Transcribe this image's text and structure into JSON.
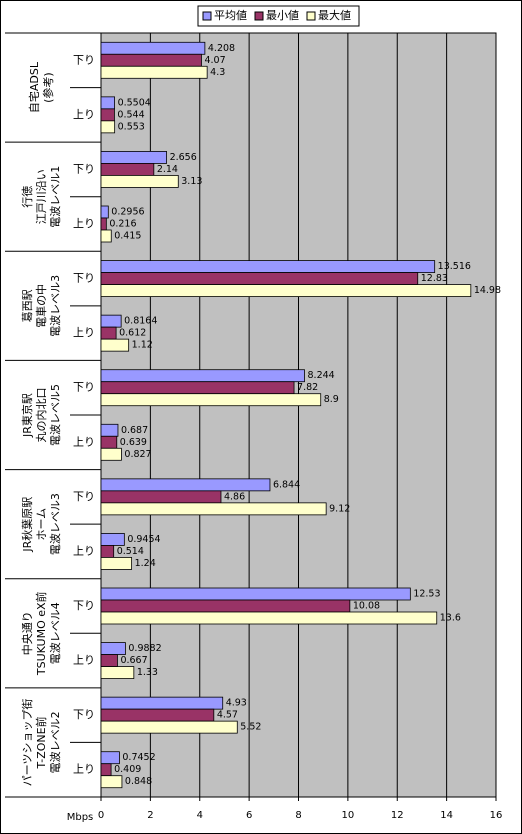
{
  "chart_data": {
    "type": "bar",
    "orientation": "horizontal",
    "groups": [
      {
        "lines": [
          "自宅ADSL",
          "(参考)"
        ],
        "subs": [
          "下り",
          "上り"
        ]
      },
      {
        "lines": [
          "行徳",
          "江戸川沿い",
          "電波レベル1"
        ],
        "subs": [
          "下り",
          "上り"
        ]
      },
      {
        "lines": [
          "葛西駅",
          "電車の中",
          "電波レベル3"
        ],
        "subs": [
          "下り",
          "上り"
        ]
      },
      {
        "lines": [
          "JR東京駅",
          "丸の内北口",
          "電波レベル5"
        ],
        "subs": [
          "下り",
          "上り"
        ]
      },
      {
        "lines": [
          "JR秋葉原駅",
          "ホーム",
          "電波レベル3"
        ],
        "subs": [
          "下り",
          "上り"
        ]
      },
      {
        "lines": [
          "中央通り",
          "TSUKUMO eX前",
          "電波レベル4"
        ],
        "subs": [
          "下り",
          "上り"
        ]
      },
      {
        "lines": [
          "パーツショップ街",
          "T-ZONE前",
          "電波レベル2"
        ],
        "subs": [
          "下り",
          "上り"
        ]
      }
    ],
    "series": [
      {
        "name": "平均値",
        "color": "#9999ff",
        "values": [
          4.208,
          0.5504,
          2.656,
          0.2956,
          13.516,
          0.8164,
          8.244,
          0.687,
          6.844,
          0.9454,
          12.53,
          0.9882,
          4.93,
          0.7452
        ]
      },
      {
        "name": "最小値",
        "color": "#993366",
        "values": [
          4.07,
          0.544,
          2.14,
          0.216,
          12.83,
          0.612,
          7.82,
          0.639,
          4.86,
          0.514,
          10.08,
          0.667,
          4.57,
          0.409
        ]
      },
      {
        "name": "最大値",
        "color": "#ffffcc",
        "values": [
          4.3,
          0.553,
          3.13,
          0.415,
          14.98,
          1.12,
          8.9,
          0.827,
          9.12,
          1.24,
          13.6,
          1.33,
          5.52,
          0.848
        ]
      }
    ],
    "x_label": "Mbps",
    "xlim": [
      0,
      16
    ],
    "xticks": [
      0,
      2,
      4,
      6,
      8,
      10,
      12,
      14,
      16
    ],
    "grid": true,
    "legend": "top"
  }
}
